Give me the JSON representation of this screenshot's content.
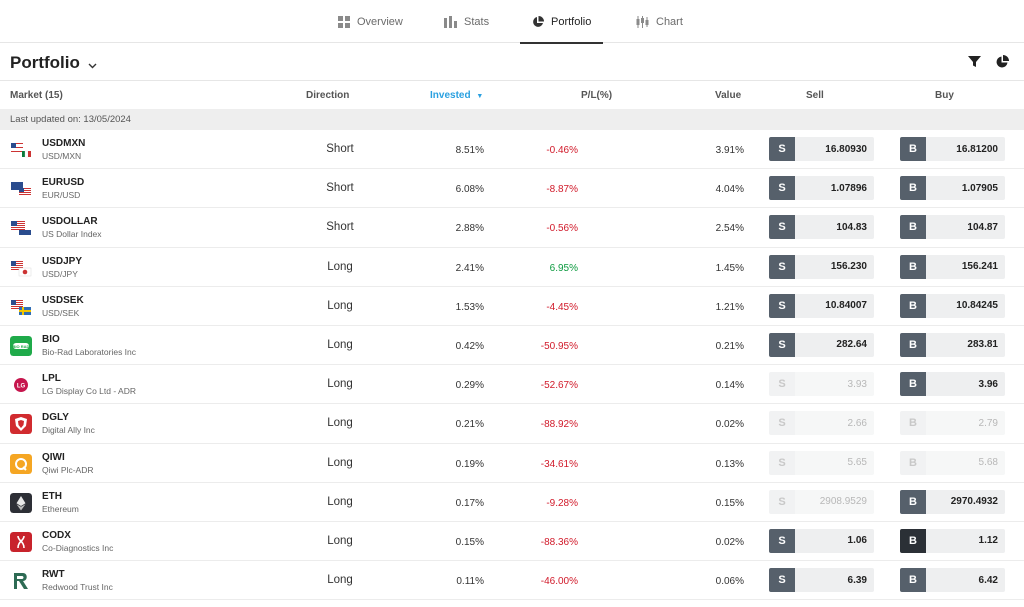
{
  "nav": {
    "tabs": [
      {
        "label": "Overview",
        "icon": "grid-icon"
      },
      {
        "label": "Stats",
        "icon": "bar-chart-icon"
      },
      {
        "label": "Portfolio",
        "icon": "pie-chart-icon",
        "active": true
      },
      {
        "label": "Chart",
        "icon": "candlestick-icon"
      }
    ]
  },
  "header": {
    "title": "Portfolio",
    "filter_icon": "filter-icon",
    "view_icon": "pie-chart-icon"
  },
  "columns": {
    "market": "Market (15)",
    "direction": "Direction",
    "invested": "Invested",
    "pl": "P/L(%)",
    "value": "Value",
    "sell": "Sell",
    "buy": "Buy"
  },
  "last_updated": "Last updated on: 13/05/2024",
  "colors": {
    "accent": "#2aa0e0",
    "negative": "#d11a2a",
    "positive": "#0c9a3f",
    "trade_button": "#56606b"
  },
  "rows": [
    {
      "symbol": "USDMXN",
      "name": "USD/MXN",
      "direction": "Short",
      "invested": "8.51%",
      "pl": "-0.46%",
      "pl_sign": "neg",
      "value": "3.91%",
      "sell_key": "S",
      "sell": "16.80930",
      "buy_key": "B",
      "buy": "16.81200",
      "sell_enabled": true,
      "buy_enabled": true
    },
    {
      "symbol": "EURUSD",
      "name": "EUR/USD",
      "direction": "Short",
      "invested": "6.08%",
      "pl": "-8.87%",
      "pl_sign": "neg",
      "value": "4.04%",
      "sell_key": "S",
      "sell": "1.07896",
      "buy_key": "B",
      "buy": "1.07905",
      "sell_enabled": true,
      "buy_enabled": true
    },
    {
      "symbol": "USDOLLAR",
      "name": "US Dollar Index",
      "direction": "Short",
      "invested": "2.88%",
      "pl": "-0.56%",
      "pl_sign": "neg",
      "value": "2.54%",
      "sell_key": "S",
      "sell": "104.83",
      "buy_key": "B",
      "buy": "104.87",
      "sell_enabled": true,
      "buy_enabled": true
    },
    {
      "symbol": "USDJPY",
      "name": "USD/JPY",
      "direction": "Long",
      "invested": "2.41%",
      "pl": "6.95%",
      "pl_sign": "pos",
      "value": "1.45%",
      "sell_key": "S",
      "sell": "156.230",
      "buy_key": "B",
      "buy": "156.241",
      "sell_enabled": true,
      "buy_enabled": true
    },
    {
      "symbol": "USDSEK",
      "name": "USD/SEK",
      "direction": "Long",
      "invested": "1.53%",
      "pl": "-4.45%",
      "pl_sign": "neg",
      "value": "1.21%",
      "sell_key": "S",
      "sell": "10.84007",
      "buy_key": "B",
      "buy": "10.84245",
      "sell_enabled": true,
      "buy_enabled": true
    },
    {
      "symbol": "BIO",
      "name": "Bio-Rad Laboratories Inc",
      "direction": "Long",
      "invested": "0.42%",
      "pl": "-50.95%",
      "pl_sign": "neg",
      "value": "0.21%",
      "sell_key": "S",
      "sell": "282.64",
      "buy_key": "B",
      "buy": "283.81",
      "sell_enabled": true,
      "buy_enabled": true
    },
    {
      "symbol": "LPL",
      "name": "LG Display Co Ltd - ADR",
      "direction": "Long",
      "invested": "0.29%",
      "pl": "-52.67%",
      "pl_sign": "neg",
      "value": "0.14%",
      "sell_key": "S",
      "sell": "3.93",
      "buy_key": "B",
      "buy": "3.96",
      "sell_enabled": false,
      "buy_enabled": true
    },
    {
      "symbol": "DGLY",
      "name": "Digital Ally Inc",
      "direction": "Long",
      "invested": "0.21%",
      "pl": "-88.92%",
      "pl_sign": "neg",
      "value": "0.02%",
      "sell_key": "S",
      "sell": "2.66",
      "buy_key": "B",
      "buy": "2.79",
      "sell_enabled": false,
      "buy_enabled": false
    },
    {
      "symbol": "QIWI",
      "name": "Qiwi Plc-ADR",
      "direction": "Long",
      "invested": "0.19%",
      "pl": "-34.61%",
      "pl_sign": "neg",
      "value": "0.13%",
      "sell_key": "S",
      "sell": "5.65",
      "buy_key": "B",
      "buy": "5.68",
      "sell_enabled": false,
      "buy_enabled": false
    },
    {
      "symbol": "ETH",
      "name": "Ethereum",
      "direction": "Long",
      "invested": "0.17%",
      "pl": "-9.28%",
      "pl_sign": "neg",
      "value": "0.15%",
      "sell_key": "S",
      "sell": "2908.9529",
      "buy_key": "B",
      "buy": "2970.4932",
      "sell_enabled": false,
      "buy_enabled": true
    },
    {
      "symbol": "CODX",
      "name": "Co-Diagnostics Inc",
      "direction": "Long",
      "invested": "0.15%",
      "pl": "-88.36%",
      "pl_sign": "neg",
      "value": "0.02%",
      "sell_key": "S",
      "sell": "1.06",
      "buy_key": "B",
      "buy": "1.12",
      "sell_enabled": true,
      "buy_enabled": true,
      "buy_hover": true
    },
    {
      "symbol": "RWT",
      "name": "Redwood Trust Inc",
      "direction": "Long",
      "invested": "0.11%",
      "pl": "-46.00%",
      "pl_sign": "neg",
      "value": "0.06%",
      "sell_key": "S",
      "sell": "6.39",
      "buy_key": "B",
      "buy": "6.42",
      "sell_enabled": true,
      "buy_enabled": true
    }
  ]
}
